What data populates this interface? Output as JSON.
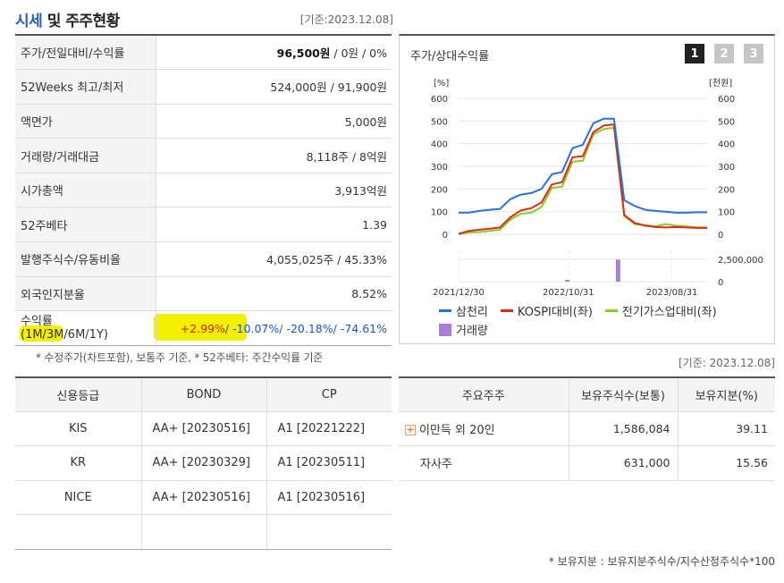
{
  "header": {
    "title_prefix": "시세",
    "title_suffix": " 및 주주현황",
    "std_date": "[기준:2023.12.08]"
  },
  "info_rows": [
    {
      "label": "주가/전일대비/수익률",
      "price": "96,500원",
      "rest": " / 0원 / 0%"
    },
    {
      "label": "52Weeks 최고/최저",
      "value": "524,000원 / 91,900원"
    },
    {
      "label": "액면가",
      "value": "5,000원"
    },
    {
      "label": "거래량/거래대금",
      "value": "8,118주 / 8억원"
    },
    {
      "label": "시가총액",
      "value": "3,913억원"
    },
    {
      "label": "52주베타",
      "value": "1.39"
    },
    {
      "label": "발행주식수/유동비율",
      "value": "4,055,025주 / 45.33%"
    },
    {
      "label": "외국인지분율",
      "value": "8.52%"
    },
    {
      "label": "수익률",
      "sublabel": "(1M/3M/6M/1Y)",
      "r1m": "+2.99%",
      "sep1": "/ ",
      "r3m": "-10.07%",
      "sep2": "/ ",
      "r6m": "-20.18%",
      "sep3": "/ ",
      "r1y": "-74.61%"
    }
  ],
  "note_left": "* 수정주가(차트포함), 보통주 기준, * 52주베타: 주간수익률 기준",
  "chart": {
    "title": "주가/상대수익률",
    "tabs": [
      "1",
      "2",
      "3"
    ],
    "active_tab": 0
  },
  "chart_data": {
    "type": "line",
    "left_unit": "[%]",
    "right_unit": "[천원]",
    "left_ticks": [
      "600",
      "500",
      "400",
      "300",
      "200",
      "100",
      "0"
    ],
    "right_ticks": [
      "600",
      "500",
      "400",
      "300",
      "200",
      "100",
      "0"
    ],
    "volume_ticks": [
      "2,500,000",
      "0"
    ],
    "x_labels": [
      "2021/12/30",
      "2022/10/31",
      "2023/08/31"
    ],
    "ylim": [
      0,
      600
    ],
    "series": [
      {
        "name": "삼천리",
        "color": "#2a6fdb",
        "axis": "right",
        "values": [
          95,
          96,
          103,
          108,
          112,
          155,
          175,
          182,
          200,
          265,
          275,
          380,
          395,
          490,
          510,
          510,
          150,
          125,
          108,
          103,
          100,
          95,
          95,
          97,
          97
        ]
      },
      {
        "name": "KOSPI대비(좌)",
        "color": "#d92b1a",
        "axis": "left",
        "values": [
          2,
          15,
          20,
          25,
          30,
          75,
          105,
          115,
          140,
          220,
          230,
          340,
          345,
          450,
          480,
          485,
          85,
          50,
          38,
          32,
          30,
          32,
          30,
          28,
          28
        ]
      },
      {
        "name": "전기가스업대비(좌)",
        "color": "#8cc92c",
        "axis": "left",
        "values": [
          0,
          8,
          10,
          15,
          20,
          65,
          90,
          95,
          120,
          205,
          210,
          320,
          325,
          440,
          465,
          470,
          80,
          45,
          40,
          35,
          45,
          38,
          35,
          30,
          30
        ]
      }
    ],
    "volume": {
      "name": "거래량",
      "color": "#a97fd6",
      "bars": [
        {
          "index": 10.5,
          "value": 200000
        },
        {
          "index": 15.4,
          "value": 2950000
        }
      ],
      "ylim": [
        0,
        3000000
      ]
    }
  },
  "std_date2": "[기준: 2023.12.08]",
  "credit": {
    "headers": [
      "신용등급",
      "BOND",
      "CP"
    ],
    "rows": [
      {
        "agency": "KIS",
        "bond": "AA+  [20230516]",
        "cp": "A1  [20221222]"
      },
      {
        "agency": "KR",
        "bond": "AA+  [20230329]",
        "cp": "A1  [20230511]"
      },
      {
        "agency": "NICE",
        "bond": "AA+  [20230516]",
        "cp": "A1  [20230516]"
      }
    ]
  },
  "holders": {
    "headers": [
      "주요주주",
      "보유주식수(보통)",
      "보유지분(%)"
    ],
    "rows": [
      {
        "name": "이만득 외 20인",
        "shares": "1,586,084",
        "pct": "39.11"
      },
      {
        "name": "자사주",
        "shares": "631,000",
        "pct": "15.56"
      }
    ]
  },
  "note_right": "* 보유지분 : 보유지분주식수/지수산정주식수*100"
}
